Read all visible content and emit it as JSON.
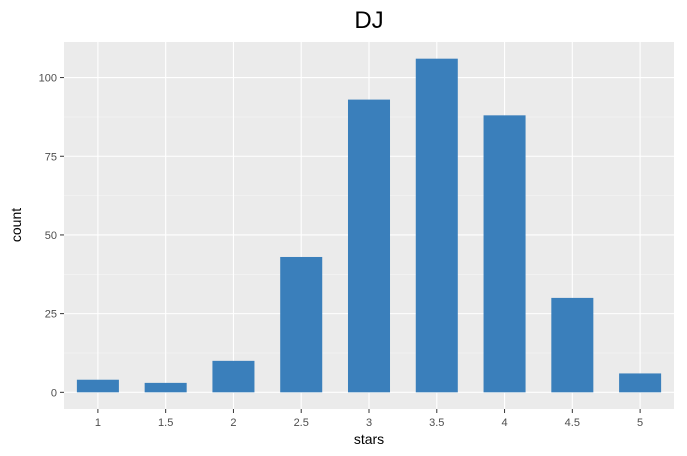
{
  "chart_data": {
    "type": "bar",
    "title": "DJ",
    "xlabel": "stars",
    "ylabel": "count",
    "categories": [
      "1",
      "1.5",
      "2",
      "2.5",
      "3",
      "3.5",
      "4",
      "4.5",
      "5"
    ],
    "values": [
      4,
      3,
      10,
      43,
      93,
      106,
      88,
      30,
      6
    ],
    "yticks": [
      0,
      25,
      50,
      75,
      100
    ],
    "ylim": [
      -5.3,
      111.3
    ],
    "grid": true,
    "bar_color": "#3A7FBB",
    "panel_color": "#EBEBEB"
  }
}
